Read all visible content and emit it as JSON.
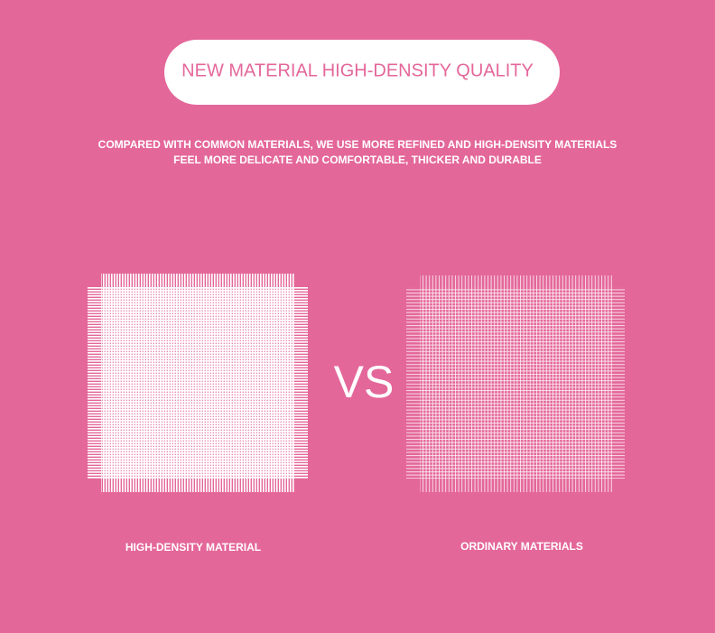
{
  "header": {
    "title": "NEW MATERIAL HIGH-DENSITY QUALITY",
    "subtitle": [
      "COMPARED WITH COMMON MATERIALS, WE USE MORE REFINED AND HIGH-DENSITY MATERIALS",
      "FEEL MORE DELICATE AND COMFORTABLE, THICKER AND DURABLE"
    ]
  },
  "comparison": {
    "separator": "VS",
    "left": {
      "label": "HIGH-DENSITY MATERIAL"
    },
    "right": {
      "label": "ORDINARY MATERIALS"
    }
  }
}
